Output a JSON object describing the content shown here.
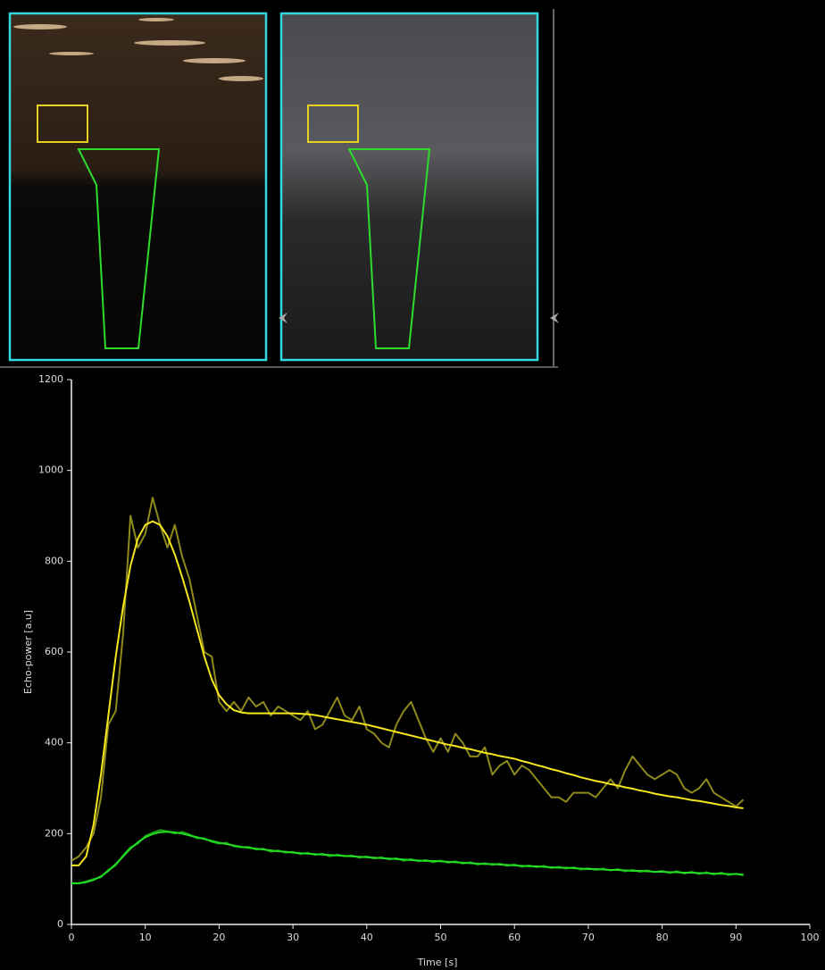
{
  "chart_data": {
    "type": "line",
    "xlabel": "Time [s]",
    "ylabel": "Echo-power [a.u]",
    "xlim": [
      0,
      100
    ],
    "xticks": [
      0,
      10,
      20,
      30,
      40,
      50,
      60,
      70,
      80,
      90,
      100
    ],
    "ylim": [
      0,
      1200
    ],
    "yticks": [
      0,
      200,
      400,
      600,
      800,
      1000,
      1200
    ],
    "grid": false,
    "x": [
      0,
      1,
      2,
      3,
      4,
      5,
      6,
      7,
      8,
      9,
      10,
      11,
      12,
      13,
      14,
      15,
      16,
      17,
      18,
      19,
      20,
      21,
      22,
      23,
      24,
      25,
      26,
      27,
      28,
      29,
      30,
      31,
      32,
      33,
      34,
      35,
      36,
      37,
      38,
      39,
      40,
      41,
      42,
      43,
      44,
      45,
      46,
      47,
      48,
      49,
      50,
      51,
      52,
      53,
      54,
      55,
      56,
      57,
      58,
      59,
      60,
      61,
      62,
      63,
      64,
      65,
      66,
      67,
      68,
      69,
      70,
      71,
      72,
      73,
      74,
      75,
      76,
      77,
      78,
      79,
      80,
      81,
      82,
      83,
      84,
      85,
      86,
      87,
      88,
      89,
      90,
      91
    ],
    "series": [
      {
        "color": "#8f8a1c",
        "values": [
          140,
          150,
          170,
          200,
          280,
          440,
          470,
          640,
          900,
          830,
          860,
          940,
          880,
          830,
          880,
          810,
          760,
          680,
          600,
          590,
          490,
          470,
          490,
          470,
          500,
          480,
          490,
          460,
          480,
          470,
          460,
          450,
          470,
          430,
          440,
          470,
          500,
          460,
          450,
          480,
          430,
          420,
          400,
          390,
          440,
          470,
          490,
          450,
          410,
          380,
          410,
          380,
          420,
          400,
          370,
          370,
          390,
          330,
          350,
          360,
          330,
          350,
          340,
          320,
          300,
          280,
          280,
          270,
          290,
          290,
          290,
          280,
          300,
          320,
          300,
          340,
          370,
          350,
          330,
          320,
          330,
          340,
          330,
          300,
          290,
          300,
          320,
          290,
          280,
          270,
          260,
          275
        ]
      },
      {
        "color": "#1a9a1a",
        "values": [
          92,
          90,
          95,
          100,
          104,
          120,
          130,
          152,
          170,
          178,
          195,
          202,
          208,
          205,
          200,
          204,
          198,
          190,
          190,
          182,
          178,
          180,
          172,
          170,
          171,
          165,
          167,
          160,
          163,
          158,
          160,
          155,
          158,
          153,
          156,
          150,
          154,
          150,
          152,
          147,
          150,
          145,
          148,
          143,
          146,
          140,
          144,
          139,
          142,
          137,
          141,
          136,
          139,
          134,
          137,
          132,
          135,
          131,
          134,
          129,
          132,
          127,
          130,
          126,
          129,
          124,
          127,
          123,
          126,
          121,
          124,
          120,
          123,
          119,
          122,
          117,
          120,
          116,
          119,
          115,
          118,
          113,
          117,
          112,
          116,
          111,
          115,
          110,
          114,
          109,
          112,
          108
        ]
      },
      {
        "color": "#f5e61e",
        "values": [
          130,
          130,
          150,
          220,
          330,
          460,
          590,
          700,
          790,
          850,
          880,
          888,
          880,
          855,
          815,
          765,
          710,
          650,
          590,
          540,
          505,
          485,
          472,
          467,
          465,
          465,
          465,
          465,
          465,
          465,
          465,
          464,
          463,
          461,
          458,
          455,
          452,
          449,
          446,
          443,
          440,
          436,
          432,
          428,
          424,
          420,
          416,
          412,
          408,
          404,
          400,
          396,
          393,
          389,
          386,
          382,
          378,
          375,
          371,
          368,
          365,
          360,
          356,
          351,
          347,
          342,
          338,
          333,
          329,
          324,
          320,
          316,
          313,
          309,
          306,
          302,
          299,
          295,
          292,
          288,
          285,
          282,
          280,
          277,
          274,
          272,
          269,
          266,
          263,
          261,
          258,
          256
        ]
      },
      {
        "color": "#22dd22",
        "values": [
          90,
          91,
          93,
          98,
          106,
          118,
          133,
          150,
          167,
          181,
          192,
          199,
          203,
          204,
          203,
          200,
          196,
          192,
          188,
          184,
          180,
          177,
          174,
          171,
          169,
          167,
          165,
          163,
          161,
          160,
          158,
          157,
          156,
          155,
          154,
          153,
          152,
          151,
          150,
          149,
          148,
          147,
          146,
          145,
          144,
          143,
          142,
          141,
          140,
          140,
          139,
          138,
          137,
          136,
          135,
          134,
          133,
          133,
          132,
          131,
          130,
          129,
          128,
          128,
          127,
          126,
          125,
          125,
          124,
          123,
          122,
          122,
          121,
          120,
          120,
          119,
          118,
          118,
          117,
          116,
          116,
          115,
          115,
          114,
          114,
          113,
          113,
          112,
          112,
          111,
          111,
          110
        ]
      }
    ]
  }
}
